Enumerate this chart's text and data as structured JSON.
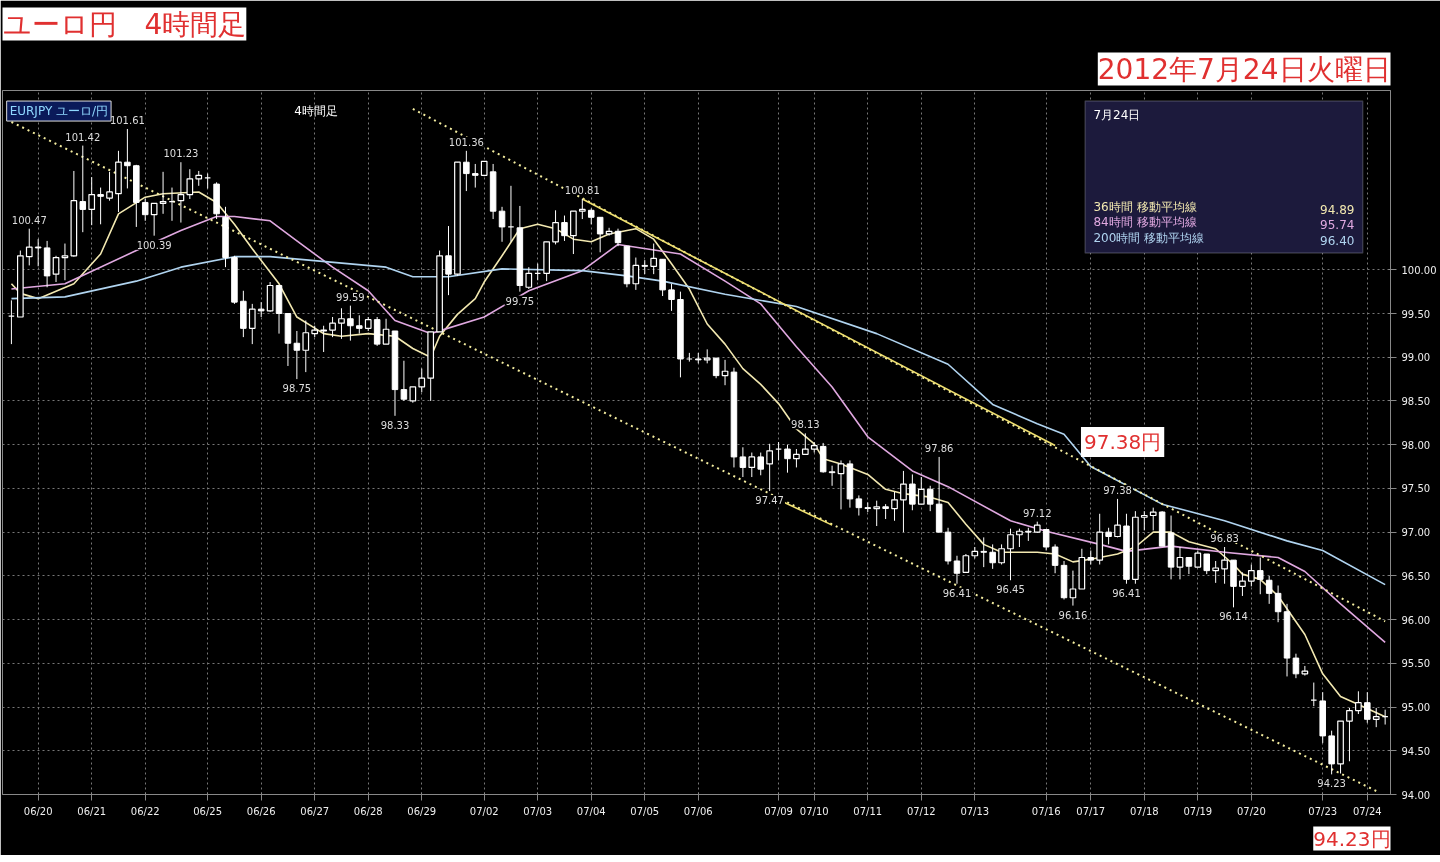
{
  "chart_data": {
    "type": "candlestick",
    "title": "ユーロ円　4時間足",
    "subtitle": "2012年7月24日火曜日",
    "legend_title": "7月24日",
    "legend": "top right",
    "grid": true,
    "color": "#ffffff",
    "ylim": [
      94.0,
      102.05
    ],
    "yticks": [
      {
        "value": 94.0,
        "label": "94.00"
      },
      {
        "value": 94.5,
        "label": "94.50"
      },
      {
        "value": 95.0,
        "label": "95.00"
      },
      {
        "value": 95.5,
        "label": "95.50"
      },
      {
        "value": 96.0,
        "label": "96.00"
      },
      {
        "value": 96.5,
        "label": "96.50"
      },
      {
        "value": 97.0,
        "label": "97.00"
      },
      {
        "value": 97.5,
        "label": "97.50"
      },
      {
        "value": 98.0,
        "label": "98.00"
      },
      {
        "value": 98.5,
        "label": "98.50"
      },
      {
        "value": 99.0,
        "label": "99.00"
      },
      {
        "value": 99.5,
        "label": "99.50"
      },
      {
        "value": 100.0,
        "label": "100.00"
      }
    ],
    "categories": [
      null,
      null,
      null,
      "06/20",
      null,
      null,
      null,
      null,
      null,
      "06/21",
      null,
      null,
      null,
      null,
      null,
      "06/22",
      null,
      null,
      null,
      null,
      null,
      null,
      "06/25",
      null,
      null,
      null,
      null,
      null,
      "06/26",
      null,
      null,
      null,
      null,
      null,
      "06/27",
      null,
      null,
      null,
      null,
      null,
      "06/28",
      null,
      null,
      null,
      null,
      null,
      "06/29",
      null,
      null,
      null,
      null,
      null,
      null,
      "07/02",
      null,
      null,
      null,
      null,
      null,
      "07/03",
      null,
      null,
      null,
      null,
      null,
      "07/04",
      null,
      null,
      null,
      null,
      null,
      "07/05",
      null,
      null,
      null,
      null,
      null,
      "07/06",
      null,
      null,
      null,
      null,
      null,
      null,
      null,
      null,
      "07/09",
      null,
      null,
      null,
      "07/10",
      null,
      null,
      null,
      null,
      null,
      "07/11",
      null,
      null,
      null,
      null,
      null,
      "07/12",
      null,
      null,
      null,
      null,
      null,
      "07/13",
      null,
      null,
      null,
      null,
      null,
      null,
      null,
      "07/16",
      null,
      null,
      null,
      null,
      "07/17",
      null,
      null,
      null,
      null,
      null,
      "07/18",
      null,
      null,
      null,
      null,
      null,
      "07/19",
      null,
      null,
      null,
      null,
      null,
      "07/20",
      null,
      null,
      null,
      null,
      null,
      null,
      null,
      "07/23",
      null,
      null,
      null,
      null,
      "07/24",
      null,
      null
    ],
    "ohlc": [
      [
        99.47,
        99.65,
        99.15,
        99.47
      ],
      [
        99.46,
        100.22,
        99.46,
        100.16
      ],
      [
        100.15,
        100.47,
        100.05,
        100.26
      ],
      [
        100.26,
        100.35,
        100.04,
        100.25
      ],
      [
        100.25,
        100.33,
        99.8,
        99.93
      ],
      [
        99.95,
        100.16,
        99.86,
        100.14
      ],
      [
        100.14,
        100.3,
        99.88,
        100.16
      ],
      [
        100.16,
        101.13,
        100.15,
        100.79
      ],
      [
        100.78,
        101.42,
        100.43,
        100.69
      ],
      [
        100.69,
        101.06,
        100.51,
        100.86
      ],
      [
        100.86,
        100.94,
        100.52,
        100.84
      ],
      [
        100.82,
        101.12,
        100.79,
        100.89
      ],
      [
        100.87,
        101.36,
        100.66,
        101.23
      ],
      [
        101.23,
        101.61,
        100.93,
        101.19
      ],
      [
        101.19,
        101.2,
        100.49,
        100.77
      ],
      [
        100.77,
        100.81,
        100.56,
        100.63
      ],
      [
        100.63,
        100.76,
        100.39,
        100.76
      ],
      [
        100.76,
        101.12,
        100.64,
        100.78
      ],
      [
        100.78,
        100.94,
        100.56,
        100.78
      ],
      [
        100.79,
        101.23,
        100.54,
        100.86
      ],
      [
        100.86,
        101.15,
        100.81,
        101.04
      ],
      [
        101.04,
        101.13,
        100.96,
        101.08
      ],
      [
        101.05,
        101.1,
        100.93,
        101.05
      ],
      [
        100.98,
        101.0,
        100.58,
        100.64
      ],
      [
        100.6,
        100.72,
        100.03,
        100.14
      ],
      [
        100.14,
        100.16,
        99.61,
        99.63
      ],
      [
        99.64,
        99.76,
        99.23,
        99.33
      ],
      [
        99.33,
        99.61,
        99.15,
        99.55
      ],
      [
        99.55,
        99.63,
        99.46,
        99.53
      ],
      [
        99.53,
        99.86,
        99.52,
        99.82
      ],
      [
        99.82,
        99.82,
        99.27,
        99.5
      ],
      [
        99.5,
        99.5,
        98.9,
        99.16
      ],
      [
        99.16,
        99.3,
        98.75,
        99.08
      ],
      [
        99.08,
        99.42,
        98.83,
        99.28
      ],
      [
        99.27,
        99.36,
        99.23,
        99.31
      ],
      [
        99.3,
        99.36,
        99.06,
        99.31
      ],
      [
        99.31,
        99.46,
        99.23,
        99.39
      ],
      [
        99.39,
        99.56,
        99.21,
        99.44
      ],
      [
        99.44,
        99.59,
        99.19,
        99.36
      ],
      [
        99.36,
        99.48,
        99.27,
        99.33
      ],
      [
        99.33,
        99.46,
        99.3,
        99.43
      ],
      [
        99.43,
        99.46,
        99.13,
        99.15
      ],
      [
        99.15,
        99.44,
        99.15,
        99.32
      ],
      [
        99.3,
        99.3,
        98.33,
        98.63
      ],
      [
        98.63,
        98.96,
        98.5,
        98.52
      ],
      [
        98.5,
        98.66,
        98.48,
        98.66
      ],
      [
        98.66,
        98.87,
        98.6,
        98.76
      ],
      [
        98.76,
        99.29,
        98.5,
        99.29
      ],
      [
        99.29,
        100.22,
        99.29,
        100.16
      ],
      [
        100.16,
        100.5,
        99.71,
        99.95
      ],
      [
        99.95,
        101.23,
        99.93,
        101.23
      ],
      [
        101.23,
        101.36,
        100.9,
        101.1
      ],
      [
        101.1,
        101.21,
        100.94,
        101.08
      ],
      [
        101.08,
        101.24,
        101.07,
        101.24
      ],
      [
        101.12,
        101.21,
        100.58,
        100.67
      ],
      [
        100.67,
        100.72,
        100.32,
        100.49
      ],
      [
        100.49,
        100.96,
        100.32,
        100.49
      ],
      [
        100.48,
        100.73,
        99.75,
        99.82
      ],
      [
        99.8,
        100.03,
        99.78,
        99.96
      ],
      [
        99.96,
        100.07,
        99.88,
        99.96
      ],
      [
        99.96,
        100.32,
        99.87,
        100.32
      ],
      [
        100.32,
        100.68,
        100.29,
        100.54
      ],
      [
        100.54,
        100.62,
        100.33,
        100.39
      ],
      [
        100.39,
        100.67,
        100.18,
        100.67
      ],
      [
        100.67,
        100.81,
        100.58,
        100.69
      ],
      [
        100.68,
        100.7,
        100.52,
        100.6
      ],
      [
        100.6,
        100.6,
        100.2,
        100.41
      ],
      [
        100.41,
        100.48,
        100.39,
        100.44
      ],
      [
        100.44,
        100.47,
        100.27,
        100.31
      ],
      [
        100.27,
        100.27,
        99.8,
        99.84
      ],
      [
        99.84,
        100.14,
        99.77,
        100.05
      ],
      [
        100.05,
        100.11,
        99.95,
        100.04
      ],
      [
        100.04,
        100.3,
        99.95,
        100.13
      ],
      [
        100.12,
        100.12,
        99.7,
        99.77
      ],
      [
        99.77,
        99.84,
        99.53,
        99.66
      ],
      [
        99.66,
        99.75,
        98.77,
        98.98
      ],
      [
        98.98,
        99.05,
        98.95,
        98.98
      ],
      [
        98.98,
        99.05,
        98.93,
        98.97
      ],
      [
        98.97,
        99.09,
        98.93,
        98.99
      ],
      [
        98.99,
        98.99,
        98.76,
        98.79
      ],
      [
        98.79,
        98.97,
        98.68,
        98.84
      ],
      [
        98.83,
        98.88,
        97.74,
        97.86
      ],
      [
        97.86,
        97.97,
        97.63,
        97.74
      ],
      [
        97.74,
        97.91,
        97.63,
        97.86
      ],
      [
        97.86,
        97.91,
        97.65,
        97.72
      ],
      [
        97.78,
        98.01,
        97.47,
        97.93
      ],
      [
        97.95,
        98.03,
        97.82,
        97.95
      ],
      [
        97.95,
        98.0,
        97.68,
        97.84
      ],
      [
        97.84,
        97.95,
        97.74,
        97.89
      ],
      [
        97.89,
        98.13,
        97.89,
        97.95
      ],
      [
        97.95,
        98.03,
        97.91,
        97.99
      ],
      [
        97.98,
        98.02,
        97.68,
        97.69
      ],
      [
        97.69,
        97.76,
        97.53,
        97.68
      ],
      [
        97.67,
        97.82,
        97.26,
        97.78
      ],
      [
        97.78,
        97.82,
        97.28,
        97.38
      ],
      [
        97.38,
        97.42,
        97.19,
        97.28
      ],
      [
        97.28,
        97.34,
        97.23,
        97.27
      ],
      [
        97.27,
        97.36,
        97.07,
        97.29
      ],
      [
        97.29,
        97.32,
        97.15,
        97.27
      ],
      [
        97.27,
        97.46,
        97.13,
        97.37
      ],
      [
        97.37,
        97.7,
        97.0,
        97.55
      ],
      [
        97.55,
        97.66,
        97.25,
        97.32
      ],
      [
        97.32,
        97.63,
        97.32,
        97.49
      ],
      [
        97.49,
        97.53,
        97.24,
        97.32
      ],
      [
        97.32,
        97.86,
        97.0,
        97.0
      ],
      [
        97.0,
        97.05,
        96.63,
        96.67
      ],
      [
        96.67,
        96.73,
        96.41,
        96.53
      ],
      [
        96.54,
        96.75,
        96.54,
        96.73
      ],
      [
        96.73,
        96.83,
        96.7,
        96.78
      ],
      [
        96.78,
        96.94,
        96.6,
        96.77
      ],
      [
        96.77,
        96.86,
        96.58,
        96.65
      ],
      [
        96.65,
        96.86,
        96.63,
        96.81
      ],
      [
        96.81,
        97.04,
        96.45,
        96.97
      ],
      [
        96.97,
        97.04,
        96.83,
        97.01
      ],
      [
        97.01,
        97.05,
        96.9,
        97.0
      ],
      [
        97.0,
        97.12,
        96.99,
        97.08
      ],
      [
        97.03,
        97.03,
        96.79,
        96.83
      ],
      [
        96.83,
        96.86,
        96.53,
        96.62
      ],
      [
        96.62,
        96.67,
        96.23,
        96.25
      ],
      [
        96.25,
        96.56,
        96.16,
        96.35
      ],
      [
        96.35,
        96.81,
        96.35,
        96.71
      ],
      [
        96.71,
        96.79,
        96.63,
        96.68
      ],
      [
        96.68,
        97.21,
        96.63,
        97.0
      ],
      [
        97.0,
        97.05,
        96.86,
        96.95
      ],
      [
        96.95,
        97.38,
        96.94,
        97.08
      ],
      [
        97.07,
        97.21,
        96.41,
        96.46
      ],
      [
        96.46,
        97.24,
        96.41,
        97.17
      ],
      [
        97.17,
        97.24,
        97.02,
        97.19
      ],
      [
        97.19,
        97.28,
        97.02,
        97.23
      ],
      [
        97.23,
        97.24,
        96.84,
        96.84
      ],
      [
        96.99,
        97.19,
        96.46,
        96.6
      ],
      [
        96.6,
        96.83,
        96.46,
        96.71
      ],
      [
        96.71,
        96.71,
        96.52,
        96.61
      ],
      [
        96.6,
        96.79,
        96.6,
        96.76
      ],
      [
        96.75,
        96.75,
        96.52,
        96.56
      ],
      [
        96.56,
        96.67,
        96.42,
        96.59
      ],
      [
        96.58,
        96.83,
        96.41,
        96.68
      ],
      [
        96.68,
        96.68,
        96.14,
        96.38
      ],
      [
        96.38,
        96.54,
        96.27,
        96.44
      ],
      [
        96.44,
        96.63,
        96.38,
        96.56
      ],
      [
        96.56,
        96.71,
        96.29,
        96.46
      ],
      [
        96.45,
        96.5,
        96.18,
        96.3
      ],
      [
        96.3,
        96.39,
        95.97,
        96.09
      ],
      [
        96.09,
        96.18,
        95.35,
        95.56
      ],
      [
        95.56,
        95.61,
        95.33,
        95.38
      ],
      [
        95.38,
        95.47,
        95.36,
        95.41
      ],
      [
        95.08,
        95.28,
        95.01,
        95.08
      ],
      [
        95.07,
        95.17,
        94.59,
        94.67
      ],
      [
        94.67,
        94.73,
        94.23,
        94.35
      ],
      [
        94.35,
        94.84,
        94.24,
        94.84
      ],
      [
        94.84,
        94.99,
        94.38,
        94.96
      ],
      [
        94.96,
        95.18,
        94.92,
        95.05
      ],
      [
        95.05,
        95.17,
        94.82,
        94.86
      ],
      [
        94.86,
        94.99,
        94.77,
        94.89
      ],
      [
        94.89,
        94.97,
        94.8,
        94.89
      ]
    ],
    "value_labels": [
      null,
      null,
      "100.47",
      null,
      null,
      null,
      null,
      null,
      "101.42",
      null,
      null,
      null,
      null,
      "101.61",
      null,
      null,
      "100.39",
      null,
      null,
      "101.23",
      null,
      null,
      null,
      null,
      null,
      null,
      null,
      null,
      null,
      null,
      null,
      null,
      "98.75",
      null,
      null,
      null,
      null,
      null,
      "99.59",
      null,
      null,
      null,
      null,
      "98.33",
      null,
      null,
      null,
      null,
      null,
      null,
      null,
      "101.36",
      null,
      null,
      null,
      null,
      null,
      "99.75",
      null,
      null,
      null,
      null,
      null,
      null,
      "100.81",
      null,
      null,
      null,
      null,
      null,
      null,
      null,
      null,
      null,
      null,
      null,
      null,
      null,
      null,
      null,
      null,
      null,
      null,
      null,
      null,
      "97.47",
      null,
      null,
      null,
      "98.13",
      null,
      null,
      null,
      null,
      null,
      null,
      null,
      null,
      null,
      null,
      null,
      null,
      null,
      null,
      "97.86",
      null,
      "96.41",
      null,
      null,
      null,
      null,
      null,
      "96.45",
      null,
      null,
      "97.12",
      null,
      null,
      null,
      "96.16",
      null,
      null,
      null,
      null,
      "97.38",
      "96.41",
      null,
      null,
      null,
      null,
      null,
      null,
      null,
      null,
      null,
      null,
      "96.83",
      "96.14",
      null,
      null,
      null,
      null,
      null,
      null,
      null,
      null,
      null,
      null,
      "94.23",
      null,
      null,
      null,
      null,
      null,
      null
    ],
    "series": [
      {
        "name": "36時間 移動平均線",
        "type": "line",
        "color": "#f2e8b0",
        "line_style": "solid",
        "values": [
          99.84,
          99.73,
          null,
          99.67,
          null,
          null,
          null,
          99.84,
          null,
          null,
          100.18,
          null,
          100.64,
          null,
          null,
          100.83,
          null,
          100.87,
          null,
          null,
          null,
          100.89,
          null,
          100.77,
          null,
          100.52,
          null,
          100.24,
          null,
          null,
          99.84,
          null,
          99.46,
          null,
          null,
          99.27,
          null,
          99.24,
          null,
          null,
          99.27,
          null,
          null,
          99.24,
          null,
          99.1,
          null,
          99.0,
          99.24,
          null,
          99.49,
          null,
          99.67,
          99.86,
          null,
          100.16,
          null,
          100.47,
          null,
          100.52,
          null,
          100.47,
          null,
          100.35,
          null,
          100.32,
          null,
          100.41,
          100.43,
          null,
          100.47,
          null,
          100.35,
          null,
          100.07,
          null,
          99.78,
          null,
          99.38,
          null,
          99.15,
          null,
          98.87,
          null,
          98.69,
          null,
          98.47,
          null,
          98.18,
          null,
          98.01,
          97.84,
          null,
          97.78,
          null,
          null,
          97.66,
          null,
          97.49,
          null,
          97.44,
          null,
          null,
          97.4,
          null,
          97.34,
          null,
          97.09,
          null,
          96.86,
          null,
          96.77,
          null,
          null,
          null,
          96.77,
          null,
          96.75,
          null,
          96.66,
          null,
          96.69,
          null,
          null,
          96.75,
          null,
          96.83,
          null,
          97.0,
          null,
          97.0,
          null,
          96.89,
          null,
          null,
          96.81,
          null,
          96.63,
          96.52,
          null,
          96.46,
          null,
          96.27,
          null,
          null,
          95.83,
          null,
          95.38,
          null,
          95.12,
          null,
          95.03,
          null,
          null,
          94.89
        ]
      },
      {
        "name": "84時間 移動平均線",
        "type": "line",
        "color": "#e0a8e0",
        "line_style": "solid",
        "values": [
          99.78,
          null,
          null,
          null,
          null,
          null,
          99.84,
          null,
          null,
          null,
          null,
          null,
          null,
          null,
          100.22,
          null,
          null,
          null,
          null,
          100.45,
          null,
          null,
          null,
          100.61,
          null,
          100.61,
          null,
          null,
          null,
          100.56,
          null,
          null,
          100.33,
          null,
          null,
          null,
          100.03,
          null,
          null,
          null,
          99.76,
          null,
          null,
          99.42,
          null,
          null,
          null,
          99.27,
          null,
          null,
          null,
          null,
          null,
          99.46,
          null,
          null,
          null,
          null,
          99.76,
          null,
          null,
          null,
          null,
          null,
          99.99,
          null,
          null,
          null,
          100.29,
          null,
          null,
          null,
          null,
          null,
          null,
          100.18,
          null,
          null,
          null,
          null,
          99.87,
          null,
          null,
          null,
          99.61,
          null,
          null,
          null,
          99.12,
          null,
          null,
          null,
          98.66,
          null,
          null,
          null,
          98.09,
          null,
          null,
          null,
          null,
          97.7,
          null,
          null,
          null,
          97.52,
          null,
          null,
          null,
          null,
          null,
          null,
          97.13,
          null,
          null,
          null,
          97.01,
          null,
          null,
          null,
          null,
          null,
          96.86,
          null,
          null,
          96.78,
          null,
          null,
          null,
          null,
          96.84,
          null,
          null,
          null,
          null,
          null,
          96.77,
          null,
          null,
          null,
          null,
          null,
          96.71,
          null,
          null,
          96.55,
          null,
          null,
          null,
          96.18,
          null,
          null,
          null,
          null,
          95.74
        ]
      },
      {
        "name": "200時間 移動平均線",
        "type": "line",
        "color": "#b0d4f0",
        "line_style": "solid",
        "values": [
          99.67,
          null,
          null,
          null,
          null,
          null,
          99.69,
          null,
          null,
          null,
          null,
          null,
          null,
          null,
          99.87,
          null,
          null,
          null,
          null,
          100.03,
          null,
          null,
          null,
          null,
          null,
          100.15,
          null,
          null,
          null,
          100.15,
          null,
          null,
          null,
          null,
          null,
          null,
          null,
          null,
          null,
          null,
          null,
          null,
          100.03,
          null,
          null,
          99.92,
          null,
          null,
          null,
          99.92,
          null,
          null,
          null,
          null,
          null,
          100.01,
          null,
          null,
          null,
          null,
          null,
          null,
          null,
          null,
          99.99,
          null,
          null,
          null,
          null,
          99.93,
          null,
          null,
          null,
          99.87,
          null,
          null,
          null,
          null,
          null,
          null,
          99.72,
          null,
          null,
          null,
          null,
          null,
          null,
          null,
          99.58,
          null,
          null,
          null,
          null,
          null,
          null,
          null,
          null,
          99.27,
          null,
          null,
          null,
          null,
          null,
          null,
          null,
          98.92,
          null,
          null,
          null,
          null,
          98.46,
          null,
          null,
          null,
          null,
          98.24,
          null,
          null,
          98.12,
          null,
          null,
          97.75,
          null,
          null,
          null,
          null,
          null,
          null,
          null,
          97.32,
          null,
          null,
          null,
          null,
          null,
          null,
          97.13,
          null,
          null,
          null,
          null,
          null,
          null,
          96.9,
          null,
          null,
          null,
          96.79,
          null,
          null,
          null,
          null,
          null,
          null,
          96.4
        ]
      },
      {
        "type": "line",
        "color": "#f5eea0",
        "line_style": "dotted",
        "values": [
          null,
          null,
          null,
          null,
          null,
          null,
          null,
          null,
          null,
          null,
          null,
          null,
          null,
          null,
          null,
          null,
          null,
          null,
          null,
          null,
          null,
          null,
          null,
          null,
          null,
          null,
          null,
          null,
          null,
          null,
          null,
          null,
          null,
          null,
          null,
          null,
          null,
          null,
          null,
          null,
          null,
          null,
          null,
          null,
          null,
          101.84,
          null,
          null,
          null,
          null,
          null,
          null,
          null,
          null,
          null,
          null,
          null,
          null,
          null,
          null,
          null,
          null,
          null,
          null,
          null,
          null,
          null,
          null,
          null,
          null,
          null,
          null,
          null,
          null,
          null,
          null,
          null,
          null,
          null,
          null,
          null,
          null,
          null,
          null,
          null,
          null,
          null,
          null,
          null,
          null,
          null,
          null,
          null,
          null,
          null,
          null,
          null,
          null,
          null,
          null,
          null,
          null,
          null,
          null,
          null,
          null,
          null,
          null,
          null,
          null,
          null,
          null,
          null,
          null,
          null,
          null,
          null,
          null,
          null,
          null,
          null,
          null,
          null,
          null,
          null,
          null,
          null,
          null,
          null,
          null,
          null,
          null,
          null,
          null,
          null,
          null,
          null,
          null,
          null,
          null,
          null,
          null,
          null,
          null,
          null,
          null,
          null,
          null,
          null,
          null,
          null,
          null,
          null,
          null,
          95.98
        ]
      },
      {
        "type": "line",
        "color": "#f5eea0",
        "line_style": "dotted",
        "values": [
          101.69,
          null,
          null,
          null,
          null,
          null,
          null,
          null,
          null,
          null,
          null,
          null,
          null,
          null,
          null,
          null,
          null,
          null,
          null,
          null,
          null,
          null,
          null,
          null,
          null,
          null,
          null,
          null,
          null,
          null,
          null,
          null,
          null,
          null,
          null,
          null,
          null,
          null,
          null,
          null,
          null,
          null,
          null,
          null,
          null,
          null,
          null,
          null,
          null,
          null,
          null,
          null,
          null,
          null,
          null,
          null,
          null,
          null,
          null,
          null,
          null,
          null,
          null,
          null,
          null,
          null,
          null,
          null,
          null,
          null,
          null,
          null,
          null,
          null,
          null,
          null,
          null,
          null,
          null,
          null,
          null,
          null,
          null,
          null,
          null,
          null,
          null,
          null,
          null,
          null,
          null,
          null,
          null,
          null,
          null,
          null,
          null,
          null,
          null,
          null,
          null,
          null,
          null,
          null,
          null,
          null,
          null,
          null,
          null,
          null,
          null,
          null,
          null,
          null,
          null,
          null,
          null,
          null,
          null,
          null,
          null,
          null,
          null,
          null,
          null,
          null,
          null,
          null,
          null,
          null,
          null,
          null,
          null,
          null,
          null,
          null,
          null,
          null,
          null,
          null,
          null,
          null,
          null,
          null,
          null,
          null,
          null,
          null,
          null,
          null,
          null,
          null,
          null,
          94.04,
          null
        ]
      },
      {
        "type": "line",
        "color": "#f0e070",
        "line_style": "solid",
        "values": [
          null,
          null,
          null,
          null,
          null,
          null,
          null,
          null,
          null,
          null,
          null,
          null,
          null,
          null,
          null,
          null,
          null,
          null,
          null,
          null,
          null,
          null,
          null,
          null,
          null,
          null,
          null,
          null,
          null,
          null,
          null,
          null,
          null,
          null,
          null,
          null,
          null,
          null,
          null,
          null,
          null,
          null,
          null,
          null,
          null,
          null,
          null,
          null,
          null,
          null,
          null,
          null,
          null,
          null,
          null,
          null,
          null,
          null,
          null,
          null,
          null,
          null,
          null,
          null,
          100.81,
          null,
          null,
          null,
          null,
          null,
          null,
          null,
          null,
          null,
          null,
          null,
          null,
          null,
          null,
          null,
          null,
          null,
          null,
          null,
          null,
          null,
          null,
          null,
          null,
          null,
          null,
          null,
          null,
          null,
          null,
          null,
          null,
          null,
          null,
          null,
          null,
          null,
          null,
          null,
          null,
          null,
          null,
          null,
          null,
          null,
          null,
          null,
          null,
          null,
          null,
          null,
          null,
          97.99,
          null,
          null,
          null,
          null,
          null,
          null,
          null,
          null,
          null,
          null,
          null,
          null,
          null,
          null,
          null,
          null,
          null,
          null,
          null,
          null,
          null,
          null,
          null,
          null,
          null,
          null,
          null,
          null,
          null,
          null,
          null,
          null,
          null,
          null,
          null,
          null,
          null
        ]
      },
      {
        "type": "line",
        "color": "#f0e070",
        "line_style": "solid",
        "values": [
          null,
          null,
          null,
          null,
          null,
          null,
          null,
          null,
          null,
          null,
          null,
          null,
          null,
          null,
          null,
          null,
          null,
          null,
          null,
          null,
          null,
          null,
          null,
          null,
          null,
          null,
          null,
          null,
          null,
          null,
          null,
          null,
          null,
          null,
          null,
          null,
          null,
          null,
          null,
          null,
          null,
          null,
          null,
          null,
          null,
          null,
          null,
          null,
          null,
          null,
          null,
          null,
          null,
          null,
          null,
          null,
          null,
          null,
          null,
          null,
          null,
          null,
          null,
          null,
          null,
          null,
          null,
          null,
          null,
          null,
          null,
          null,
          null,
          null,
          null,
          null,
          null,
          null,
          null,
          null,
          null,
          null,
          null,
          null,
          null,
          97.42,
          null,
          null,
          null,
          null,
          null,
          null,
          97.08,
          null,
          null,
          null,
          null,
          null,
          null,
          null,
          null,
          null,
          null,
          null,
          null,
          null,
          null,
          null,
          null,
          null,
          null,
          null,
          null,
          null,
          null,
          null,
          null,
          null,
          null,
          null,
          null,
          null,
          null,
          null,
          null,
          null,
          null,
          null,
          null,
          null,
          null,
          null,
          null,
          null,
          null,
          null,
          null,
          null,
          null,
          null,
          null,
          null,
          null,
          null,
          null,
          null,
          null,
          null,
          null,
          null,
          null,
          null,
          null,
          null,
          null
        ]
      }
    ],
    "annotations": [
      "EURJPY ユーロ/円",
      "4時間足",
      "97.38円",
      "94.23円",
      "94.89",
      "95.74",
      "96.40"
    ]
  }
}
